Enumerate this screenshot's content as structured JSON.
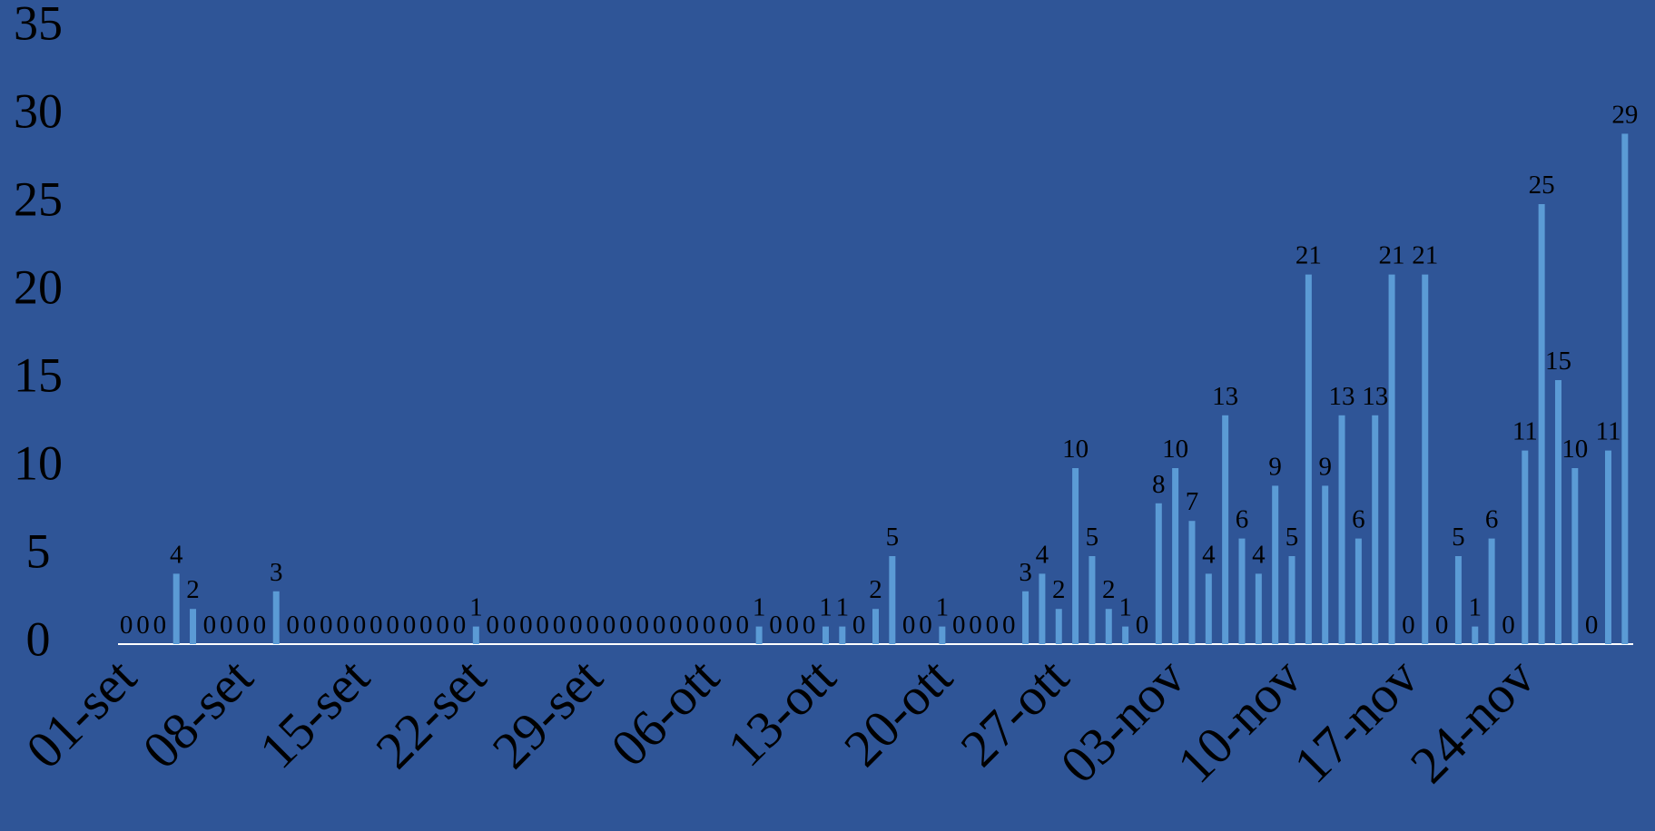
{
  "chart_data": {
    "type": "bar",
    "categories": [
      "01-set",
      null,
      null,
      null,
      null,
      null,
      null,
      "08-set",
      null,
      null,
      null,
      null,
      null,
      null,
      "15-set",
      null,
      null,
      null,
      null,
      null,
      null,
      "22-set",
      null,
      null,
      null,
      null,
      null,
      null,
      "29-set",
      null,
      null,
      null,
      null,
      null,
      null,
      "06-ott",
      null,
      null,
      null,
      null,
      null,
      null,
      "13-ott",
      null,
      null,
      null,
      null,
      null,
      null,
      "20-ott",
      null,
      null,
      null,
      null,
      null,
      null,
      "27-ott",
      null,
      null,
      null,
      null,
      null,
      null,
      "03-nov",
      null,
      null,
      null,
      null,
      null,
      null,
      "10-nov",
      null,
      null,
      null,
      null,
      null,
      null,
      "17-nov",
      null,
      null,
      null,
      null,
      null,
      null,
      "24-nov",
      null,
      null,
      null,
      null,
      null,
      null
    ],
    "values": [
      0,
      0,
      0,
      4,
      2,
      0,
      0,
      0,
      0,
      3,
      0,
      0,
      0,
      0,
      0,
      0,
      0,
      0,
      0,
      0,
      0,
      1,
      0,
      0,
      0,
      0,
      0,
      0,
      0,
      0,
      0,
      0,
      0,
      0,
      0,
      0,
      0,
      0,
      1,
      0,
      0,
      0,
      1,
      1,
      0,
      2,
      5,
      0,
      0,
      1,
      0,
      0,
      0,
      0,
      3,
      4,
      2,
      10,
      5,
      2,
      1,
      0,
      8,
      10,
      7,
      4,
      13,
      6,
      4,
      9,
      5,
      21,
      9,
      13,
      6,
      13,
      21,
      0,
      21,
      0,
      5,
      1,
      6,
      0,
      11,
      25,
      15,
      10,
      0,
      11,
      29
    ],
    "color": "#5b9bd5",
    "ylim": [
      0,
      35
    ],
    "yticks": [
      0,
      5,
      10,
      15,
      20,
      25,
      30,
      35
    ]
  }
}
